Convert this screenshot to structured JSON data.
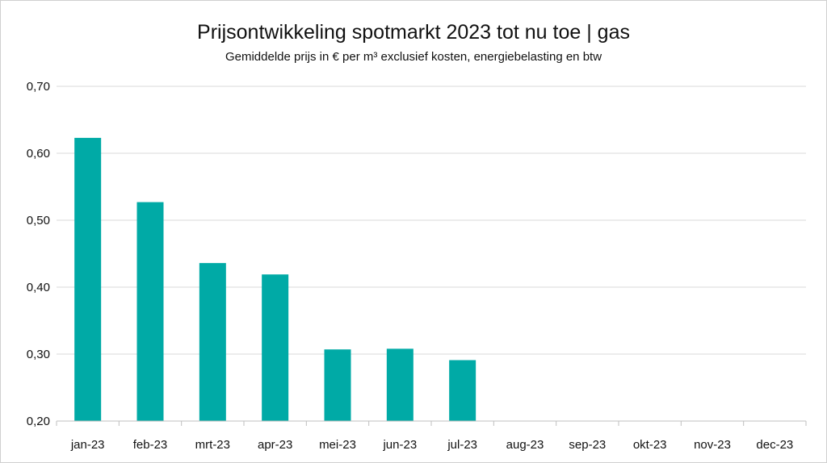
{
  "chart_data": {
    "type": "bar",
    "title": "Prijsontwikkeling spotmarkt 2023 tot nu toe | gas",
    "subtitle": "Gemiddelde prijs in € per m³ exclusief kosten, energiebelasting en btw",
    "categories": [
      "jan-23",
      "feb-23",
      "mrt-23",
      "apr-23",
      "mei-23",
      "jun-23",
      "jul-23",
      "aug-23",
      "sep-23",
      "okt-23",
      "nov-23",
      "dec-23"
    ],
    "values": [
      0.623,
      0.527,
      0.436,
      0.419,
      0.307,
      0.308,
      0.291,
      null,
      null,
      null,
      null,
      null
    ],
    "ylim": [
      0.2,
      0.7
    ],
    "yticks": [
      "0,20",
      "0,30",
      "0,40",
      "0,50",
      "0,60",
      "0,70"
    ],
    "grid": true,
    "legend": "none",
    "bar_color": "#00aaa6"
  }
}
